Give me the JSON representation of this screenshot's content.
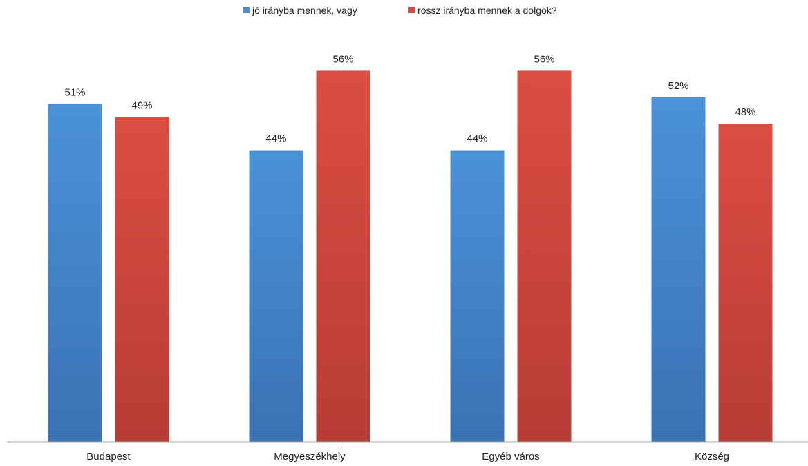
{
  "chart_data": {
    "type": "bar",
    "categories": [
      "Budapest",
      "Megyeszékhely",
      "Egyéb város",
      "Község"
    ],
    "series": [
      {
        "name": "jó irányba mennek, vagy",
        "values": [
          51,
          44,
          44,
          52
        ],
        "labels": [
          "51%",
          "44%",
          "44%",
          "52%"
        ],
        "color": "#4a8fd4"
      },
      {
        "name": "rossz irányba mennek a dolgok?",
        "values": [
          49,
          56,
          56,
          48
        ],
        "labels": [
          "49%",
          "56%",
          "56%",
          "48%"
        ],
        "color": "#d9493f"
      }
    ],
    "title": "",
    "xlabel": "",
    "ylabel": "",
    "ylim": [
      0,
      60
    ],
    "grid": false,
    "legend": "top"
  }
}
